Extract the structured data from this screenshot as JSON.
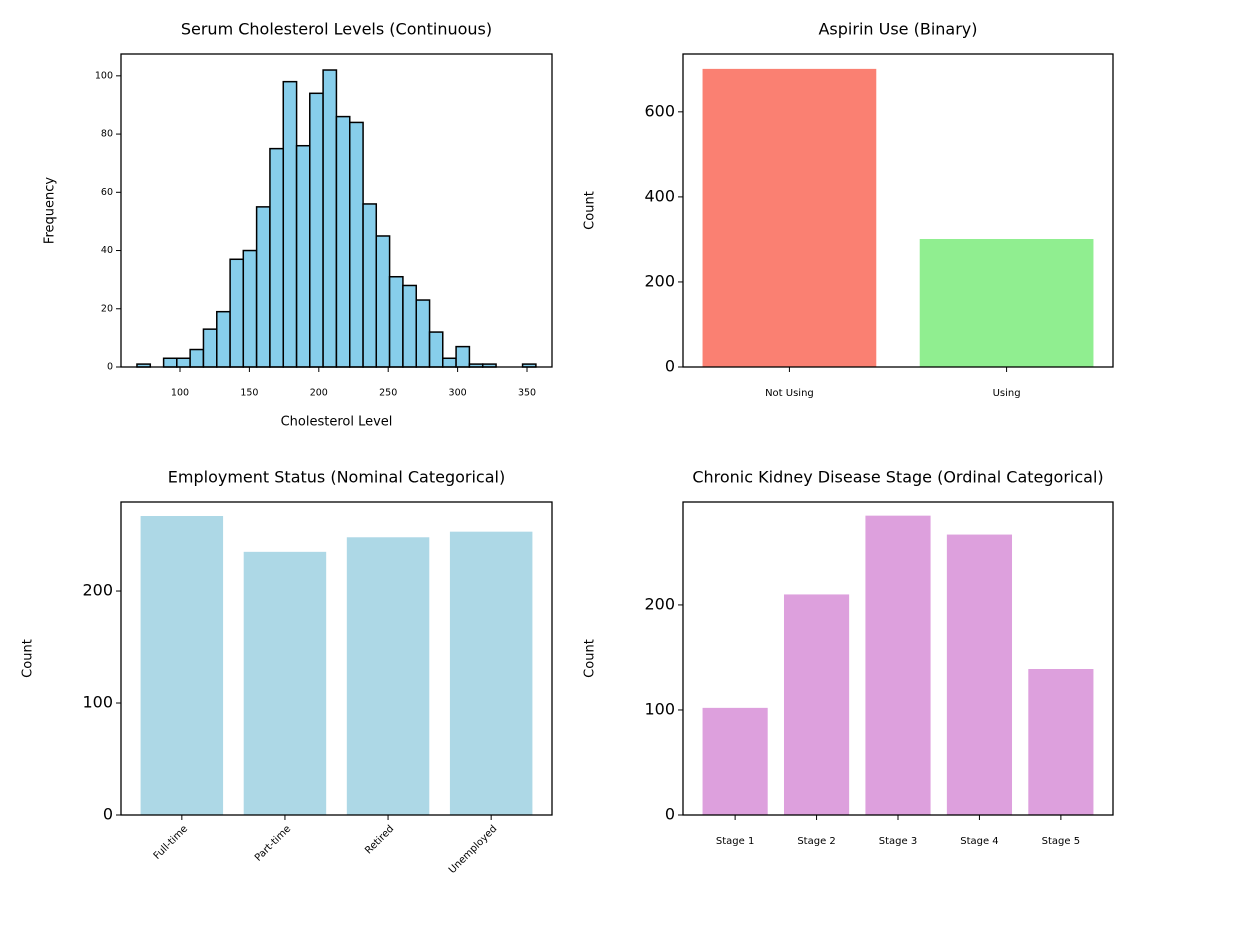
{
  "chart_data": [
    {
      "type": "histogram",
      "title": "Serum Cholesterol Levels (Continuous)",
      "xlabel": "Cholesterol Level",
      "ylabel": "Frequency",
      "bins": [
        69.0,
        78.6,
        88.2,
        97.7,
        107.3,
        116.9,
        126.5,
        136.1,
        145.6,
        155.2,
        164.8,
        174.4,
        184.0,
        193.5,
        203.1,
        212.7,
        222.3,
        231.9,
        241.4,
        251.0,
        260.6,
        270.2,
        279.8,
        289.3,
        298.9,
        308.5,
        318.1,
        327.7,
        337.2,
        346.8,
        356.4
      ],
      "values": [
        1,
        0,
        3,
        3,
        6,
        13,
        19,
        37,
        40,
        55,
        75,
        98,
        76,
        94,
        102,
        86,
        84,
        56,
        45,
        31,
        28,
        23,
        12,
        3,
        7,
        1,
        1,
        0,
        0,
        1
      ],
      "color": "#87ceeb",
      "edgecolor": "#000000",
      "xlim": [
        57.5,
        368
      ],
      "xticks": [
        100,
        150,
        200,
        250,
        300,
        350
      ],
      "ylim": [
        0,
        107.5
      ],
      "yticks": [
        0,
        20,
        40,
        60,
        80,
        100
      ]
    },
    {
      "type": "bar",
      "title": "Aspirin Use (Binary)",
      "ylabel": "Count",
      "categories": [
        "Not Using",
        "Using"
      ],
      "values": [
        701,
        301
      ],
      "colors": [
        "#fa8072",
        "#90ee90"
      ],
      "ylim": [
        0,
        736
      ],
      "yticks": [
        0,
        200,
        400,
        600
      ]
    },
    {
      "type": "bar",
      "title": "Employment Status (Nominal Categorical)",
      "ylabel": "Count",
      "categories": [
        "Full-time",
        "Part-time",
        "Retired",
        "Unemployed"
      ],
      "values": [
        267,
        235,
        248,
        253
      ],
      "color": "#add8e6",
      "ylim": [
        0,
        279.5
      ],
      "yticks": [
        0,
        100,
        200
      ]
    },
    {
      "type": "bar",
      "title": "Chronic Kidney Disease Stage (Ordinal Categorical)",
      "ylabel": "Count",
      "categories": [
        "Stage 1",
        "Stage 2",
        "Stage 3",
        "Stage 4",
        "Stage 5"
      ],
      "values": [
        102,
        210,
        285,
        267,
        139
      ],
      "color": "#dda0dd",
      "ylim": [
        0,
        298
      ],
      "yticks": [
        0,
        100,
        200
      ]
    }
  ]
}
